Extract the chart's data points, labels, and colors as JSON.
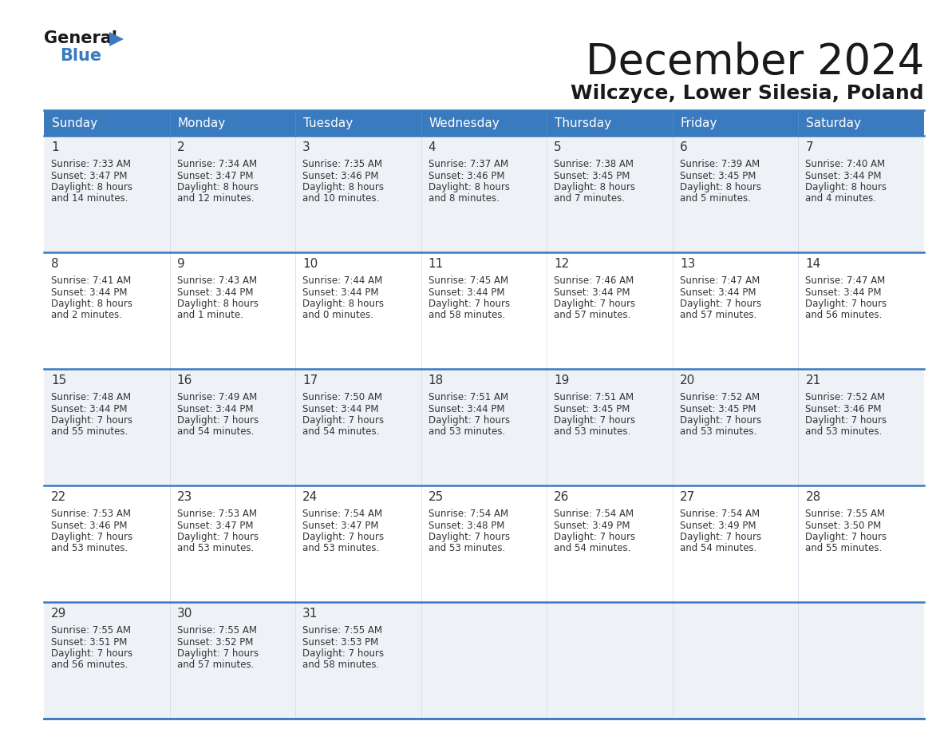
{
  "title": "December 2024",
  "subtitle": "Wilczyce, Lower Silesia, Poland",
  "days_of_week": [
    "Sunday",
    "Monday",
    "Tuesday",
    "Wednesday",
    "Thursday",
    "Friday",
    "Saturday"
  ],
  "header_bg": "#3a7abf",
  "header_text": "#ffffff",
  "cell_bg_even": "#eef2f7",
  "cell_bg_odd": "#ffffff",
  "border_color": "#3a7abf",
  "text_color": "#333333",
  "calendar_data": [
    [
      {
        "day": 1,
        "sunrise": "7:33 AM",
        "sunset": "3:47 PM",
        "daylight": "8 hours and 14 minutes."
      },
      {
        "day": 2,
        "sunrise": "7:34 AM",
        "sunset": "3:47 PM",
        "daylight": "8 hours and 12 minutes."
      },
      {
        "day": 3,
        "sunrise": "7:35 AM",
        "sunset": "3:46 PM",
        "daylight": "8 hours and 10 minutes."
      },
      {
        "day": 4,
        "sunrise": "7:37 AM",
        "sunset": "3:46 PM",
        "daylight": "8 hours and 8 minutes."
      },
      {
        "day": 5,
        "sunrise": "7:38 AM",
        "sunset": "3:45 PM",
        "daylight": "8 hours and 7 minutes."
      },
      {
        "day": 6,
        "sunrise": "7:39 AM",
        "sunset": "3:45 PM",
        "daylight": "8 hours and 5 minutes."
      },
      {
        "day": 7,
        "sunrise": "7:40 AM",
        "sunset": "3:44 PM",
        "daylight": "8 hours and 4 minutes."
      }
    ],
    [
      {
        "day": 8,
        "sunrise": "7:41 AM",
        "sunset": "3:44 PM",
        "daylight": "8 hours and 2 minutes."
      },
      {
        "day": 9,
        "sunrise": "7:43 AM",
        "sunset": "3:44 PM",
        "daylight": "8 hours and 1 minute."
      },
      {
        "day": 10,
        "sunrise": "7:44 AM",
        "sunset": "3:44 PM",
        "daylight": "8 hours and 0 minutes."
      },
      {
        "day": 11,
        "sunrise": "7:45 AM",
        "sunset": "3:44 PM",
        "daylight": "7 hours and 58 minutes."
      },
      {
        "day": 12,
        "sunrise": "7:46 AM",
        "sunset": "3:44 PM",
        "daylight": "7 hours and 57 minutes."
      },
      {
        "day": 13,
        "sunrise": "7:47 AM",
        "sunset": "3:44 PM",
        "daylight": "7 hours and 57 minutes."
      },
      {
        "day": 14,
        "sunrise": "7:47 AM",
        "sunset": "3:44 PM",
        "daylight": "7 hours and 56 minutes."
      }
    ],
    [
      {
        "day": 15,
        "sunrise": "7:48 AM",
        "sunset": "3:44 PM",
        "daylight": "7 hours and 55 minutes."
      },
      {
        "day": 16,
        "sunrise": "7:49 AM",
        "sunset": "3:44 PM",
        "daylight": "7 hours and 54 minutes."
      },
      {
        "day": 17,
        "sunrise": "7:50 AM",
        "sunset": "3:44 PM",
        "daylight": "7 hours and 54 minutes."
      },
      {
        "day": 18,
        "sunrise": "7:51 AM",
        "sunset": "3:44 PM",
        "daylight": "7 hours and 53 minutes."
      },
      {
        "day": 19,
        "sunrise": "7:51 AM",
        "sunset": "3:45 PM",
        "daylight": "7 hours and 53 minutes."
      },
      {
        "day": 20,
        "sunrise": "7:52 AM",
        "sunset": "3:45 PM",
        "daylight": "7 hours and 53 minutes."
      },
      {
        "day": 21,
        "sunrise": "7:52 AM",
        "sunset": "3:46 PM",
        "daylight": "7 hours and 53 minutes."
      }
    ],
    [
      {
        "day": 22,
        "sunrise": "7:53 AM",
        "sunset": "3:46 PM",
        "daylight": "7 hours and 53 minutes."
      },
      {
        "day": 23,
        "sunrise": "7:53 AM",
        "sunset": "3:47 PM",
        "daylight": "7 hours and 53 minutes."
      },
      {
        "day": 24,
        "sunrise": "7:54 AM",
        "sunset": "3:47 PM",
        "daylight": "7 hours and 53 minutes."
      },
      {
        "day": 25,
        "sunrise": "7:54 AM",
        "sunset": "3:48 PM",
        "daylight": "7 hours and 53 minutes."
      },
      {
        "day": 26,
        "sunrise": "7:54 AM",
        "sunset": "3:49 PM",
        "daylight": "7 hours and 54 minutes."
      },
      {
        "day": 27,
        "sunrise": "7:54 AM",
        "sunset": "3:49 PM",
        "daylight": "7 hours and 54 minutes."
      },
      {
        "day": 28,
        "sunrise": "7:55 AM",
        "sunset": "3:50 PM",
        "daylight": "7 hours and 55 minutes."
      }
    ],
    [
      {
        "day": 29,
        "sunrise": "7:55 AM",
        "sunset": "3:51 PM",
        "daylight": "7 hours and 56 minutes."
      },
      {
        "day": 30,
        "sunrise": "7:55 AM",
        "sunset": "3:52 PM",
        "daylight": "7 hours and 57 minutes."
      },
      {
        "day": 31,
        "sunrise": "7:55 AM",
        "sunset": "3:53 PM",
        "daylight": "7 hours and 58 minutes."
      },
      null,
      null,
      null,
      null
    ]
  ]
}
